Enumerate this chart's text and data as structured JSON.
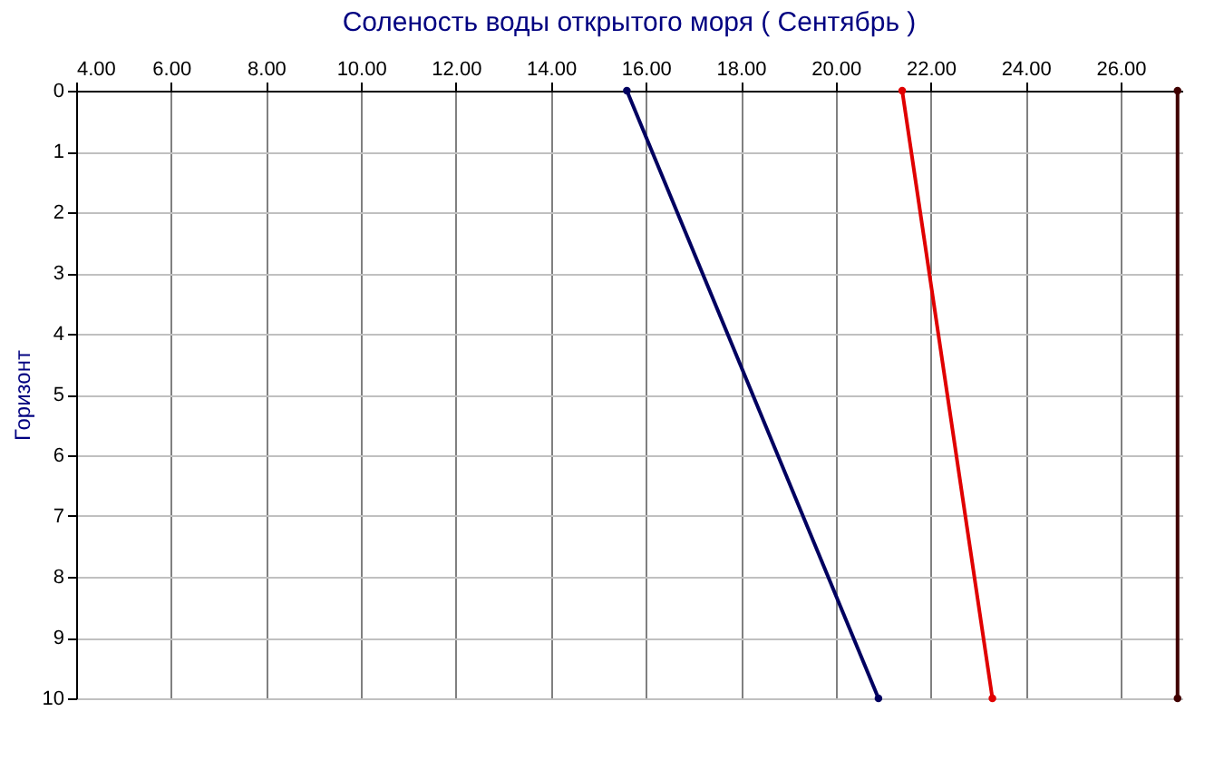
{
  "chart_data": {
    "type": "line",
    "title": "Соленость воды открытого моря   ( Сентябрь )",
    "ylabel": "Горизонт",
    "series": [
      {
        "color": "#000060",
        "x": [
          15.6,
          20.9
        ],
        "values": [
          0,
          10
        ]
      },
      {
        "color": "#e00000",
        "x": [
          21.4,
          23.3
        ],
        "values": [
          0,
          10
        ]
      },
      {
        "color": "#400000",
        "x": [
          27.2,
          27.2
        ],
        "values": [
          0,
          10
        ]
      }
    ],
    "xlim": [
      4,
      27.3
    ],
    "xticks": [
      {
        "value": 4,
        "label": "4.00"
      },
      {
        "value": 6,
        "label": "6.00"
      },
      {
        "value": 8,
        "label": "8.00"
      },
      {
        "value": 10,
        "label": "10.00"
      },
      {
        "value": 12,
        "label": "12.00"
      },
      {
        "value": 14,
        "label": "14.00"
      },
      {
        "value": 16,
        "label": "16.00"
      },
      {
        "value": 18,
        "label": "18.00"
      },
      {
        "value": 20,
        "label": "20.00"
      },
      {
        "value": 22,
        "label": "22.00"
      },
      {
        "value": 24,
        "label": "24.00"
      },
      {
        "value": 26,
        "label": "26.00"
      }
    ],
    "ylim": [
      10,
      0
    ],
    "yticks": [
      0,
      1,
      2,
      3,
      4,
      5,
      6,
      7,
      8,
      9,
      10
    ],
    "grid": true,
    "marker": "circle",
    "line_style": "solid",
    "legend": false
  }
}
